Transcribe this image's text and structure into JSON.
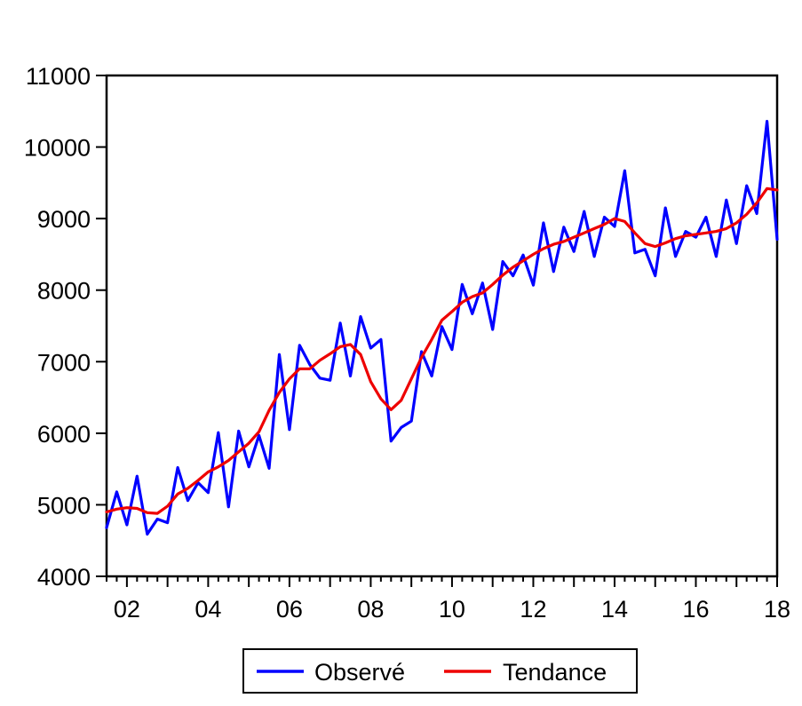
{
  "chart_data": {
    "type": "line",
    "title": "",
    "xlabel": "",
    "ylabel": "",
    "x_range": [
      2001.5,
      2018.0
    ],
    "ylim": [
      4000,
      11000
    ],
    "y_ticks": [
      4000,
      5000,
      6000,
      7000,
      8000,
      9000,
      10000,
      11000
    ],
    "y_tick_labels": [
      "4000",
      "5000",
      "6000",
      "7000",
      "8000",
      "9000",
      "10000",
      "11000"
    ],
    "x_ticks": [
      2002,
      2004,
      2006,
      2008,
      2010,
      2012,
      2014,
      2016,
      2018
    ],
    "x_tick_labels": [
      "02",
      "04",
      "06",
      "08",
      "10",
      "12",
      "14",
      "16",
      "18"
    ],
    "grid": false,
    "legend_position": "bottom-center",
    "series": [
      {
        "name": "Observé",
        "color": "#0000ff",
        "x": [
          2001.5,
          2001.75,
          2002.0,
          2002.25,
          2002.5,
          2002.75,
          2003.0,
          2003.25,
          2003.5,
          2003.75,
          2004.0,
          2004.25,
          2004.5,
          2004.75,
          2005.0,
          2005.25,
          2005.5,
          2005.75,
          2006.0,
          2006.25,
          2006.5,
          2006.75,
          2007.0,
          2007.25,
          2007.5,
          2007.75,
          2008.0,
          2008.25,
          2008.5,
          2008.75,
          2009.0,
          2009.25,
          2009.5,
          2009.75,
          2010.0,
          2010.25,
          2010.5,
          2010.75,
          2011.0,
          2011.25,
          2011.5,
          2011.75,
          2012.0,
          2012.25,
          2012.5,
          2012.75,
          2013.0,
          2013.25,
          2013.5,
          2013.75,
          2014.0,
          2014.25,
          2014.5,
          2014.75,
          2015.0,
          2015.25,
          2015.5,
          2015.75,
          2016.0,
          2016.25,
          2016.5,
          2016.75,
          2017.0,
          2017.25,
          2017.5,
          2017.75,
          2018.0
        ],
        "y": [
          4680,
          5180,
          4720,
          5400,
          4590,
          4800,
          4750,
          5520,
          5060,
          5310,
          5170,
          6010,
          4970,
          6030,
          5530,
          5970,
          5510,
          7100,
          6050,
          7230,
          6960,
          6770,
          6740,
          7540,
          6800,
          7630,
          7190,
          7310,
          5890,
          6080,
          6170,
          7140,
          6800,
          7490,
          7170,
          8080,
          7670,
          8100,
          7450,
          8400,
          8200,
          8490,
          8070,
          8940,
          8260,
          8880,
          8540,
          9100,
          8470,
          9020,
          8890,
          9670,
          8520,
          8570,
          8200,
          9150,
          8470,
          8820,
          8740,
          9020,
          8470,
          9260,
          8650,
          9460,
          9070,
          10360,
          8710
        ]
      },
      {
        "name": "Tendance",
        "color": "#ee0000",
        "x": [
          2001.5,
          2001.75,
          2002.0,
          2002.25,
          2002.5,
          2002.75,
          2003.0,
          2003.25,
          2003.5,
          2003.75,
          2004.0,
          2004.25,
          2004.5,
          2004.75,
          2005.0,
          2005.25,
          2005.5,
          2005.75,
          2006.0,
          2006.25,
          2006.5,
          2006.75,
          2007.0,
          2007.25,
          2007.5,
          2007.75,
          2008.0,
          2008.25,
          2008.5,
          2008.75,
          2009.0,
          2009.25,
          2009.5,
          2009.75,
          2010.0,
          2010.25,
          2010.5,
          2010.75,
          2011.0,
          2011.25,
          2011.5,
          2011.75,
          2012.0,
          2012.25,
          2012.5,
          2012.75,
          2013.0,
          2013.25,
          2013.5,
          2013.75,
          2014.0,
          2014.25,
          2014.5,
          2014.75,
          2015.0,
          2015.25,
          2015.5,
          2015.75,
          2016.0,
          2016.25,
          2016.5,
          2016.75,
          2017.0,
          2017.25,
          2017.5,
          2017.75,
          2018.0
        ],
        "y": [
          4900,
          4940,
          4960,
          4950,
          4890,
          4880,
          4980,
          5150,
          5230,
          5340,
          5460,
          5530,
          5620,
          5740,
          5860,
          6020,
          6320,
          6570,
          6760,
          6900,
          6900,
          7020,
          7110,
          7210,
          7240,
          7100,
          6720,
          6480,
          6330,
          6460,
          6760,
          7060,
          7310,
          7580,
          7700,
          7830,
          7910,
          7960,
          8080,
          8210,
          8320,
          8410,
          8500,
          8580,
          8640,
          8680,
          8740,
          8800,
          8860,
          8920,
          9000,
          8960,
          8800,
          8650,
          8610,
          8660,
          8720,
          8760,
          8780,
          8800,
          8820,
          8860,
          8940,
          9060,
          9220,
          9420,
          9400
        ]
      }
    ]
  }
}
